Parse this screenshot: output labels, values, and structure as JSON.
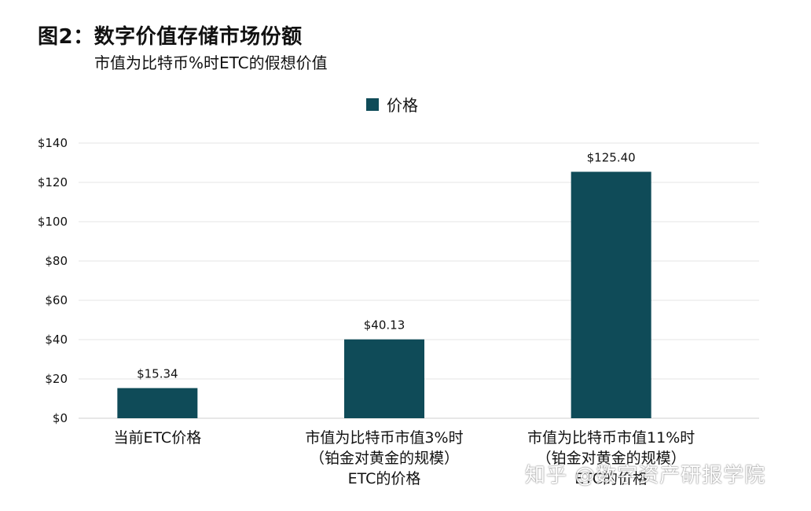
{
  "title": "图2：数字价值存储市场份额",
  "subtitle": "市值为比特币%时ETC的假想价值",
  "watermark": "知乎 @数字资产研报学院",
  "colors": {
    "bar": "#0f4b58",
    "grid": "#e4e4e4",
    "text": "#111111"
  },
  "chart_data": {
    "type": "bar",
    "title": "图2：数字价值存储市场份额",
    "subtitle": "市值为比特币%时ETC的假想价值",
    "categories": [
      "当前ETC价格",
      "市值为比特币市值3%时\n（铂金对黄金的规模）\nETC的价格",
      "市值为比特币市值11%时\n（铂金对黄金的规模）\nETC的价格"
    ],
    "series": [
      {
        "name": "价格",
        "values": [
          15.34,
          40.13,
          125.4
        ]
      }
    ],
    "data_labels": [
      "$15.34",
      "$40.13",
      "$125.40"
    ],
    "yticks": [
      "$0",
      "$20",
      "$40",
      "$60",
      "$80",
      "$100",
      "$120",
      "$140"
    ],
    "ylim": [
      0,
      140
    ],
    "xlabel": "",
    "ylabel": "",
    "legend_position": "top-center",
    "grid": true
  }
}
